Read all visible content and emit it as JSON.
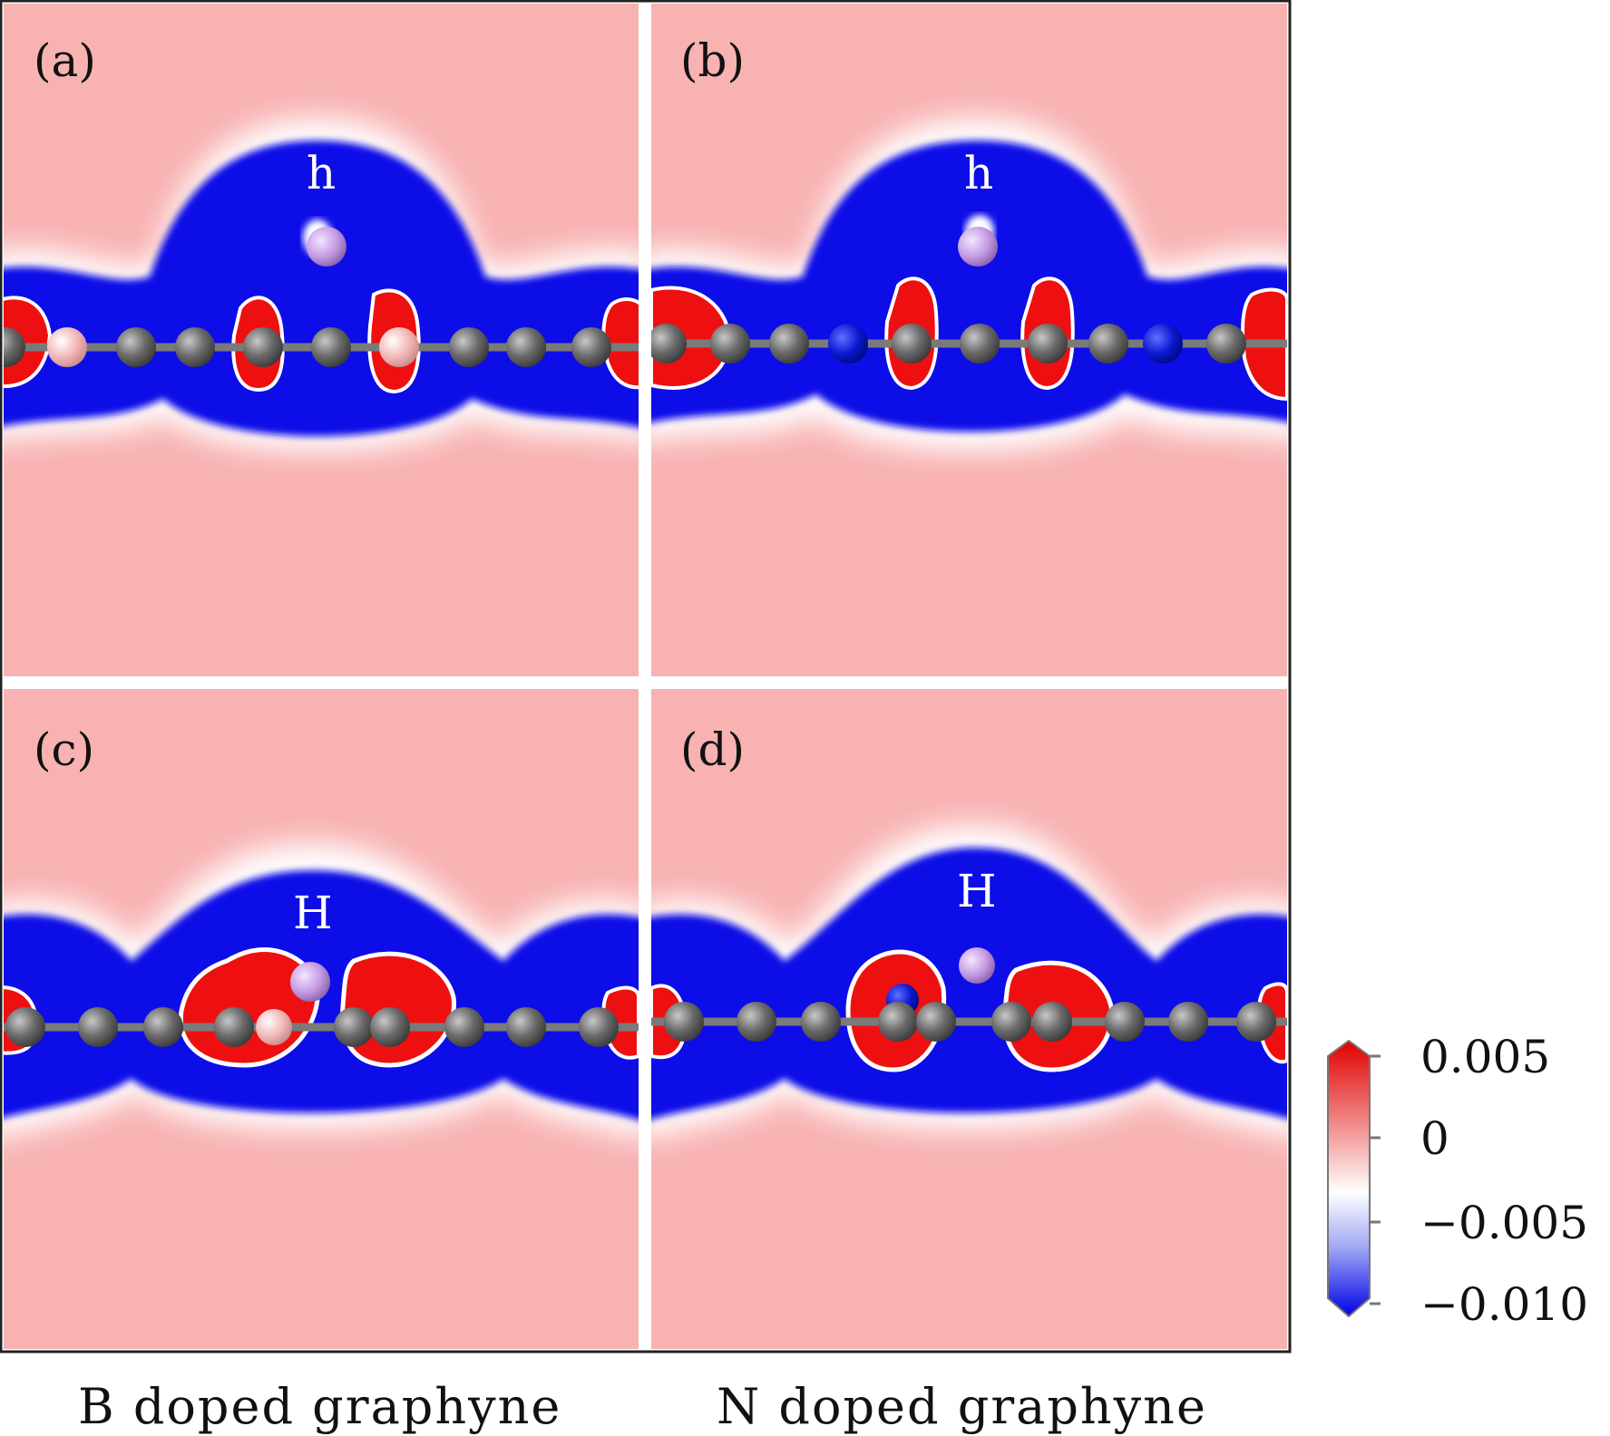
{
  "panels": [
    {
      "id": "a",
      "label": "(a)",
      "site_label": "h",
      "dopant_color": "#f2b8b8"
    },
    {
      "id": "b",
      "label": "(b)",
      "site_label": "h",
      "dopant_color": "#0a1bd6"
    },
    {
      "id": "c",
      "label": "(c)",
      "site_label": "H",
      "dopant_color": "#f2b8b8"
    },
    {
      "id": "d",
      "label": "(d)",
      "site_label": "H",
      "dopant_color": "#0a1bd6"
    }
  ],
  "captions": {
    "left": "B doped graphyne",
    "right": "N doped graphyne"
  },
  "colorbar": {
    "ticks": [
      "0.005",
      "0",
      "−0.005",
      "−0.010"
    ],
    "max_color": "#e00000",
    "zero_color": "#ffffff",
    "min_color": "#0000e6"
  },
  "colors": {
    "background_field": "#f8b2b2",
    "depletion": "#1010e8",
    "accumulation": "#ee1010",
    "carbon_atom": "#6f6f6f",
    "adsorbate_atom": "#c69ae6"
  }
}
